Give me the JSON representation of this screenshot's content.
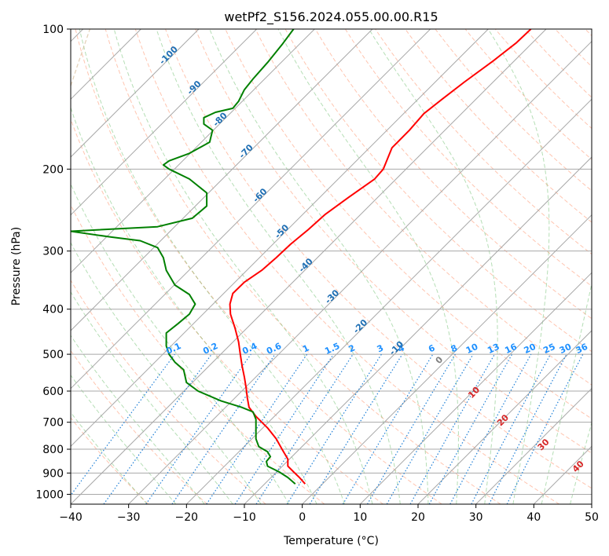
{
  "chart_data": {
    "type": "line",
    "title": "wetPf2_S156.2024.055.00.00.R15",
    "xlabel": "Temperature (°C)",
    "ylabel": "Pressure (hPa)",
    "xlim": [
      -40,
      50
    ],
    "ylim": [
      1050,
      100
    ],
    "y_scale": "log",
    "grid": true,
    "x_ticks": [
      "−40",
      "−30",
      "−20",
      "−10",
      "0",
      "10",
      "20",
      "30",
      "40",
      "50"
    ],
    "y_ticks": [
      {
        "p": 100,
        "label": "100"
      },
      {
        "p": 200,
        "label": "200"
      },
      {
        "p": 300,
        "label": "300"
      },
      {
        "p": 400,
        "label": "400"
      },
      {
        "p": 500,
        "label": "500"
      },
      {
        "p": 600,
        "label": "600"
      },
      {
        "p": 700,
        "label": "700"
      },
      {
        "p": 800,
        "label": "800"
      },
      {
        "p": 900,
        "label": "900"
      },
      {
        "p": 1000,
        "label": "1000"
      }
    ],
    "series": [
      {
        "color": "#ff0000",
        "points": [
          [
            0.5,
            950
          ],
          [
            -0.5,
            920
          ],
          [
            -1.5,
            895
          ],
          [
            -2.5,
            870
          ],
          [
            -2.5,
            840
          ],
          [
            -3.5,
            800
          ],
          [
            -4.5,
            760
          ],
          [
            -6,
            720
          ],
          [
            -8,
            680
          ],
          [
            -9.2,
            650
          ],
          [
            -9.5,
            620
          ],
          [
            -9.7,
            590
          ],
          [
            -10,
            560
          ],
          [
            -10.4,
            530
          ],
          [
            -10.7,
            500
          ],
          [
            -11,
            470
          ],
          [
            -11.6,
            440
          ],
          [
            -12.4,
            410
          ],
          [
            -12.5,
            390
          ],
          [
            -12,
            370
          ],
          [
            -10,
            350
          ],
          [
            -7,
            330
          ],
          [
            -4.5,
            310
          ],
          [
            -2,
            290
          ],
          [
            1,
            270
          ],
          [
            4,
            250
          ],
          [
            8,
            230
          ],
          [
            12.5,
            210
          ],
          [
            14,
            200
          ],
          [
            15.5,
            180
          ],
          [
            18.5,
            165
          ],
          [
            21,
            152
          ],
          [
            24,
            142
          ],
          [
            28,
            130
          ],
          [
            33,
            117
          ],
          [
            37,
            107
          ],
          [
            39.5,
            100
          ]
        ]
      },
      {
        "color": "#008000",
        "points": [
          [
            -1.2,
            950
          ],
          [
            -2.5,
            920
          ],
          [
            -4,
            895
          ],
          [
            -6,
            870
          ],
          [
            -6.2,
            850
          ],
          [
            -5.5,
            830
          ],
          [
            -6,
            810
          ],
          [
            -7.5,
            790
          ],
          [
            -8,
            760
          ],
          [
            -8,
            720
          ],
          [
            -8,
            690
          ],
          [
            -8.5,
            665
          ],
          [
            -10.5,
            650
          ],
          [
            -14,
            630
          ],
          [
            -18,
            600
          ],
          [
            -20,
            575
          ],
          [
            -20.5,
            540
          ],
          [
            -22,
            520
          ],
          [
            -23,
            500
          ],
          [
            -23.5,
            480
          ],
          [
            -23.5,
            450
          ],
          [
            -21.5,
            430
          ],
          [
            -19.5,
            410
          ],
          [
            -18.5,
            390
          ],
          [
            -19.5,
            372
          ],
          [
            -22,
            355
          ],
          [
            -23.5,
            330
          ],
          [
            -24,
            310
          ],
          [
            -25,
            295
          ],
          [
            -28,
            285
          ],
          [
            -33,
            280
          ],
          [
            -40,
            272
          ],
          [
            -25,
            266
          ],
          [
            -19,
            255
          ],
          [
            -16.5,
            240
          ],
          [
            -16.5,
            225
          ],
          [
            -19.5,
            210
          ],
          [
            -23,
            200
          ],
          [
            -24,
            196
          ],
          [
            -23,
            192
          ],
          [
            -19.5,
            185
          ],
          [
            -16,
            175
          ],
          [
            -15.5,
            165
          ],
          [
            -17,
            160
          ],
          [
            -17,
            155
          ],
          [
            -15,
            151
          ],
          [
            -12,
            148
          ],
          [
            -11,
            143
          ],
          [
            -10,
            135
          ],
          [
            -8.5,
            128
          ],
          [
            -6,
            118
          ],
          [
            -3.5,
            108
          ],
          [
            -1.5,
            100
          ]
        ]
      }
    ],
    "annotations": {
      "dry_adiabat_labels": [
        "-100",
        "-90",
        "-80",
        "-70",
        "-60",
        "-50",
        "-40",
        "-30",
        "-20",
        "-10"
      ],
      "mixing_ratio_labels": [
        "0.1",
        "0.2",
        "0.4",
        "0.6",
        "1",
        "1.5",
        "2",
        "3",
        "4",
        "6",
        "8",
        "10",
        "13",
        "16",
        "20",
        "25",
        "30",
        "36"
      ],
      "moist_adiabat_labels": [
        "0",
        "10",
        "20",
        "30",
        "40"
      ]
    },
    "colors": {
      "isotherm": "#a8a8a8",
      "isobar": "#a8a8a8",
      "dry_adiabat": "#ff7f50",
      "moist_adiabat": "#2ca02c",
      "mixing_ratio": "#1e7fd6",
      "dry_adiabat_label": "#1f6fb4",
      "mixing_ratio_label": "#1e90ff",
      "moist_adiabat_label": "#d62728",
      "moist_zero_label": "#808080",
      "dashed_tan": "#d2b48c"
    }
  }
}
